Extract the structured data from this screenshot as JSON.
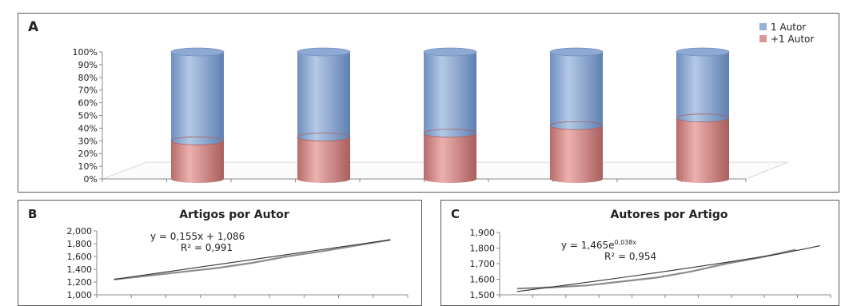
{
  "chart_data": [
    {
      "panel_label": "A",
      "type": "bar",
      "style": "3d-cylinder-stacked-100",
      "categories": [
        "",
        "",
        "",
        "",
        ""
      ],
      "series": [
        {
          "name": "1 Autor",
          "color": "#95b3d7",
          "values": [
            70,
            67,
            64,
            58,
            52
          ]
        },
        {
          "name": "+1 Autor",
          "color": "#d99694",
          "values": [
            30,
            33,
            36,
            42,
            48
          ]
        }
      ],
      "y_ticks": [
        "100%",
        "90%",
        "80%",
        "70%",
        "60%",
        "50%",
        "40%",
        "30%",
        "20%",
        "10%",
        "0%"
      ],
      "ylim": [
        0,
        100
      ],
      "legend_position": "top-right"
    },
    {
      "panel_label": "B",
      "type": "line",
      "title": "Artigos por Autor",
      "x": [
        1,
        2,
        3,
        4,
        5,
        6,
        7,
        8,
        9
      ],
      "series": [
        {
          "color": "#8c8c8c",
          "values": [
            1.24,
            1.3,
            1.36,
            1.42,
            1.5,
            1.6,
            1.68,
            1.77,
            1.86
          ]
        },
        {
          "color": "#333333",
          "values": [
            1.241,
            1.396,
            1.551,
            1.706,
            1.861
          ],
          "x": [
            1,
            3,
            5,
            7,
            9
          ]
        }
      ],
      "annotation": [
        "y = 0,155x + 1,086",
        "R² = 0,991"
      ],
      "y_ticks": [
        "2,000",
        "1,800",
        "1,600",
        "1,400",
        "1,200",
        "1,000"
      ],
      "ylim": [
        1.0,
        2.0
      ]
    },
    {
      "panel_label": "C",
      "type": "line",
      "title": "Autores por Artigo",
      "x": [
        1,
        2,
        3,
        4,
        5,
        6,
        7,
        8,
        9
      ],
      "series": [
        {
          "color": "#8c8c8c",
          "values": [
            1.54,
            1.548,
            1.56,
            1.585,
            1.61,
            1.65,
            1.7,
            1.74,
            1.79
          ]
        },
        {
          "color": "#333333",
          "values": [
            1.521,
            1.565,
            1.61,
            1.658,
            1.708,
            1.761,
            1.815
          ],
          "x": [
            1,
            2.5,
            4,
            5.5,
            7,
            8.5,
            9.7
          ]
        }
      ],
      "annotation": [
        "y = 1,465e",
        "0,038x",
        "R² = 0,954"
      ],
      "y_ticks": [
        "1,900",
        "1,800",
        "1,700",
        "1,600",
        "1,500"
      ],
      "ylim": [
        1.5,
        1.9
      ]
    }
  ]
}
